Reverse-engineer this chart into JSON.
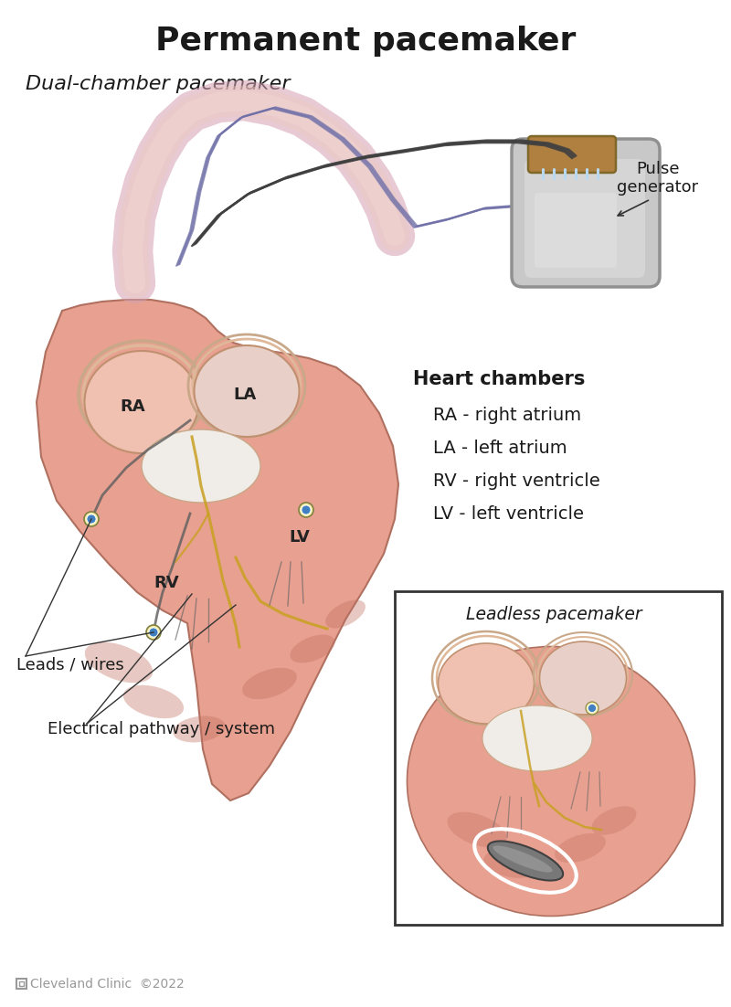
{
  "title": "Permanent pacemaker",
  "title_fontsize": 26,
  "title_fontweight": "bold",
  "subtitle": "Dual-chamber pacemaker",
  "subtitle_fontsize": 16,
  "subtitle_style": "italic",
  "bg_color": "#ffffff",
  "heart_chambers_title": "Heart chambers",
  "heart_chambers_lines": [
    "RA - right atrium",
    "LA - left atrium",
    "RV - right ventricle",
    "LV - left ventricle"
  ],
  "chambers_fontsize": 14,
  "pulse_generator_label": "Pulse\ngenerator",
  "leadless_label": "Leadless pacemaker",
  "leads_label": "Leads / wires",
  "electrical_label": "Electrical pathway / system",
  "copyright_text": "Cleveland Clinic  ©2022",
  "label_RA": "RA",
  "label_LA": "LA",
  "label_RV": "RV",
  "label_LV": "LV",
  "heart_fill": "#e8a090",
  "heart_dark": "#c07060",
  "heart_pink_light": "#f0c0b0",
  "vessel_color": "#d4a0b0",
  "lead_color": "#606060",
  "gold_color": "#c8a020",
  "blue_dot": "#4080c0",
  "cream_color": "#f5e8b0",
  "device_gray": "#c8c8c8",
  "device_tan": "#b08040",
  "text_color": "#1a1a1a",
  "annotation_color": "#222222"
}
